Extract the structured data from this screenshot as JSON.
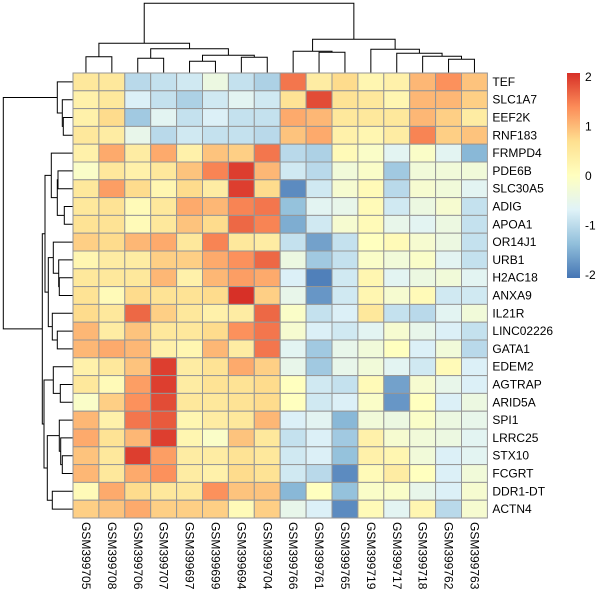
{
  "chart_data": {
    "type": "heatmap",
    "title": "",
    "columns": [
      "GSM399705",
      "GSM399708",
      "GSM399706",
      "GSM399707",
      "GSM399697",
      "GSM399699",
      "GSM399694",
      "GSM399704",
      "GSM399766",
      "GSM399761",
      "GSM399765",
      "GSM399719",
      "GSM399717",
      "GSM399718",
      "GSM399762",
      "GSM399763"
    ],
    "rows": [
      "TEF",
      "SLC1A7",
      "EEF2K",
      "RNF183",
      "FRMPD4",
      "PDE6B",
      "SLC30A5",
      "ADIG",
      "APOA1",
      "OR14J1",
      "URB1",
      "H2AC18",
      "ANXA9",
      "IL21R",
      "LINC02226",
      "GATA1",
      "EDEM2",
      "AGTRAP",
      "ARID5A",
      "SPI1",
      "LRRC25",
      "STX10",
      "FCGRT",
      "DDR1-DT",
      "ACTN4"
    ],
    "values": [
      [
        0.5,
        0.5,
        -1.0,
        -0.9,
        -0.8,
        -0.4,
        -0.9,
        -1.1,
        1.5,
        0.4,
        0.7,
        0.2,
        0.3,
        1.0,
        1.3,
        0.9
      ],
      [
        0.3,
        0.5,
        -0.7,
        -0.9,
        -1.1,
        -0.8,
        -0.6,
        -0.8,
        0.6,
        1.8,
        0.6,
        0.5,
        0.2,
        1.0,
        1.0,
        0.8
      ],
      [
        0.3,
        0.7,
        -1.2,
        -0.6,
        -0.9,
        -0.7,
        -0.9,
        -0.9,
        1.1,
        1.0,
        0.5,
        0.5,
        0.5,
        1.0,
        0.8,
        0.4
      ],
      [
        0.5,
        0.4,
        -0.5,
        -1.0,
        -0.8,
        -0.9,
        -0.9,
        -1.0,
        0.9,
        1.1,
        0.3,
        0.2,
        0.4,
        1.4,
        0.8,
        0.9
      ],
      [
        0.3,
        1.1,
        0.4,
        1.1,
        0.3,
        0.9,
        0.8,
        1.5,
        -1.0,
        -1.1,
        0.1,
        -0.1,
        -0.6,
        -0.1,
        -0.6,
        -1.4
      ],
      [
        -0.1,
        0.5,
        0.3,
        0.5,
        0.9,
        1.4,
        1.9,
        1.0,
        -0.8,
        -1.0,
        -0.3,
        -0.1,
        -1.2,
        -0.3,
        -0.3,
        -0.3
      ],
      [
        0.5,
        1.2,
        0.7,
        0.2,
        0.7,
        0.4,
        1.9,
        0.7,
        -1.8,
        -0.8,
        -0.2,
        0.1,
        -1.0,
        -0.2,
        -0.3,
        -0.6
      ],
      [
        0.5,
        0.6,
        0.1,
        0.5,
        1.1,
        1.0,
        1.4,
        1.5,
        -1.3,
        -0.6,
        -0.5,
        0.1,
        -0.8,
        -0.4,
        -0.2,
        -0.9
      ],
      [
        0.6,
        0.6,
        0.1,
        0.5,
        0.9,
        0.7,
        1.6,
        1.4,
        -1.5,
        -0.8,
        -0.2,
        0.1,
        -0.5,
        -0.6,
        -0.4,
        -0.9
      ],
      [
        0.8,
        0.7,
        1.0,
        1.1,
        0.5,
        1.4,
        0.5,
        0.4,
        -0.9,
        -1.6,
        -0.9,
        0.0,
        0.1,
        -0.2,
        -0.4,
        -0.9
      ],
      [
        0.2,
        0.4,
        0.4,
        0.8,
        0.8,
        1.1,
        1.3,
        1.6,
        -0.4,
        -1.2,
        -0.9,
        -0.1,
        -0.3,
        -0.1,
        -0.6,
        -0.9
      ],
      [
        0.5,
        0.5,
        0.5,
        1.0,
        0.3,
        1.0,
        1.2,
        1.1,
        -0.7,
        -1.9,
        -0.8,
        0.2,
        -0.6,
        -0.4,
        -0.3,
        -0.6
      ],
      [
        0.6,
        0.1,
        0.7,
        0.6,
        0.6,
        0.7,
        2.0,
        0.8,
        -0.5,
        -1.7,
        -0.8,
        0.2,
        -0.2,
        0.1,
        -0.8,
        -0.8
      ],
      [
        0.7,
        0.5,
        1.6,
        0.8,
        0.5,
        0.3,
        0.4,
        1.6,
        -0.1,
        -0.9,
        -0.7,
        0.5,
        -0.9,
        -1.0,
        -0.6,
        -0.3
      ],
      [
        1.0,
        0.4,
        0.9,
        0.5,
        0.5,
        0.7,
        1.3,
        1.5,
        -0.2,
        -0.7,
        -0.8,
        -0.6,
        -0.2,
        -0.5,
        -0.7,
        -0.9
      ],
      [
        1.0,
        1.1,
        1.0,
        0.3,
        0.2,
        1.0,
        0.4,
        1.5,
        -0.6,
        -1.2,
        -0.5,
        -0.3,
        0.0,
        -0.7,
        -0.3,
        -1.0
      ],
      [
        0.3,
        0.5,
        0.9,
        1.9,
        0.4,
        0.6,
        1.1,
        0.8,
        -0.5,
        -1.2,
        -0.5,
        -0.3,
        -0.6,
        -0.8,
        0.1,
        -0.7
      ],
      [
        0.5,
        0.1,
        1.2,
        1.9,
        0.4,
        0.6,
        0.6,
        0.7,
        0.0,
        -0.8,
        -0.9,
        0.1,
        -1.6,
        -0.2,
        -0.5,
        -0.7
      ],
      [
        -0.1,
        0.8,
        1.3,
        1.8,
        0.5,
        0.5,
        0.6,
        0.7,
        0.0,
        -0.8,
        -0.7,
        -0.1,
        -1.7,
        0.0,
        -0.7,
        -0.4
      ],
      [
        1.0,
        0.3,
        1.5,
        1.7,
        0.2,
        0.4,
        0.5,
        1.0,
        -0.7,
        -0.6,
        -1.4,
        -0.3,
        -0.4,
        -0.1,
        -0.4,
        -0.5
      ],
      [
        1.1,
        0.6,
        1.0,
        1.9,
        0.2,
        -0.1,
        0.9,
        0.5,
        -0.9,
        -0.7,
        -1.2,
        0.3,
        -0.2,
        -0.3,
        -0.4,
        -0.6
      ],
      [
        0.9,
        0.5,
        1.9,
        1.2,
        0.4,
        0.4,
        0.6,
        0.5,
        -0.8,
        -0.7,
        -1.3,
        0.3,
        0.2,
        -0.3,
        -0.7,
        -0.6
      ],
      [
        1.0,
        0.5,
        1.1,
        1.3,
        0.4,
        0.3,
        0.7,
        0.6,
        -0.8,
        -1.0,
        -1.8,
        0.1,
        0.4,
        0.0,
        -0.7,
        -0.3
      ],
      [
        0.1,
        1.1,
        0.7,
        0.5,
        0.5,
        1.3,
        0.9,
        0.9,
        -1.4,
        0.0,
        -1.3,
        -0.1,
        -0.1,
        -0.5,
        -0.7,
        -0.2
      ],
      [
        0.8,
        0.9,
        1.1,
        0.8,
        0.8,
        0.8,
        0.1,
        0.8,
        -0.5,
        -0.7,
        -1.8,
        0.1,
        -0.6,
        0.2,
        -1.0,
        -0.2
      ]
    ],
    "color_range": [
      -2,
      2
    ],
    "palette": [
      "#4575B4",
      "#91BFDB",
      "#E0F3F8",
      "#FFFFBF",
      "#FEE090",
      "#FC8D59",
      "#D73027"
    ],
    "legend": {
      "placement": "right",
      "ticks": [
        "2",
        "1",
        "0",
        "-1",
        "-2"
      ],
      "tick_values": [
        2,
        1,
        0,
        -1,
        -2
      ]
    },
    "grid_color": "#969696",
    "row_dendrogram": true,
    "column_dendrogram": true
  }
}
